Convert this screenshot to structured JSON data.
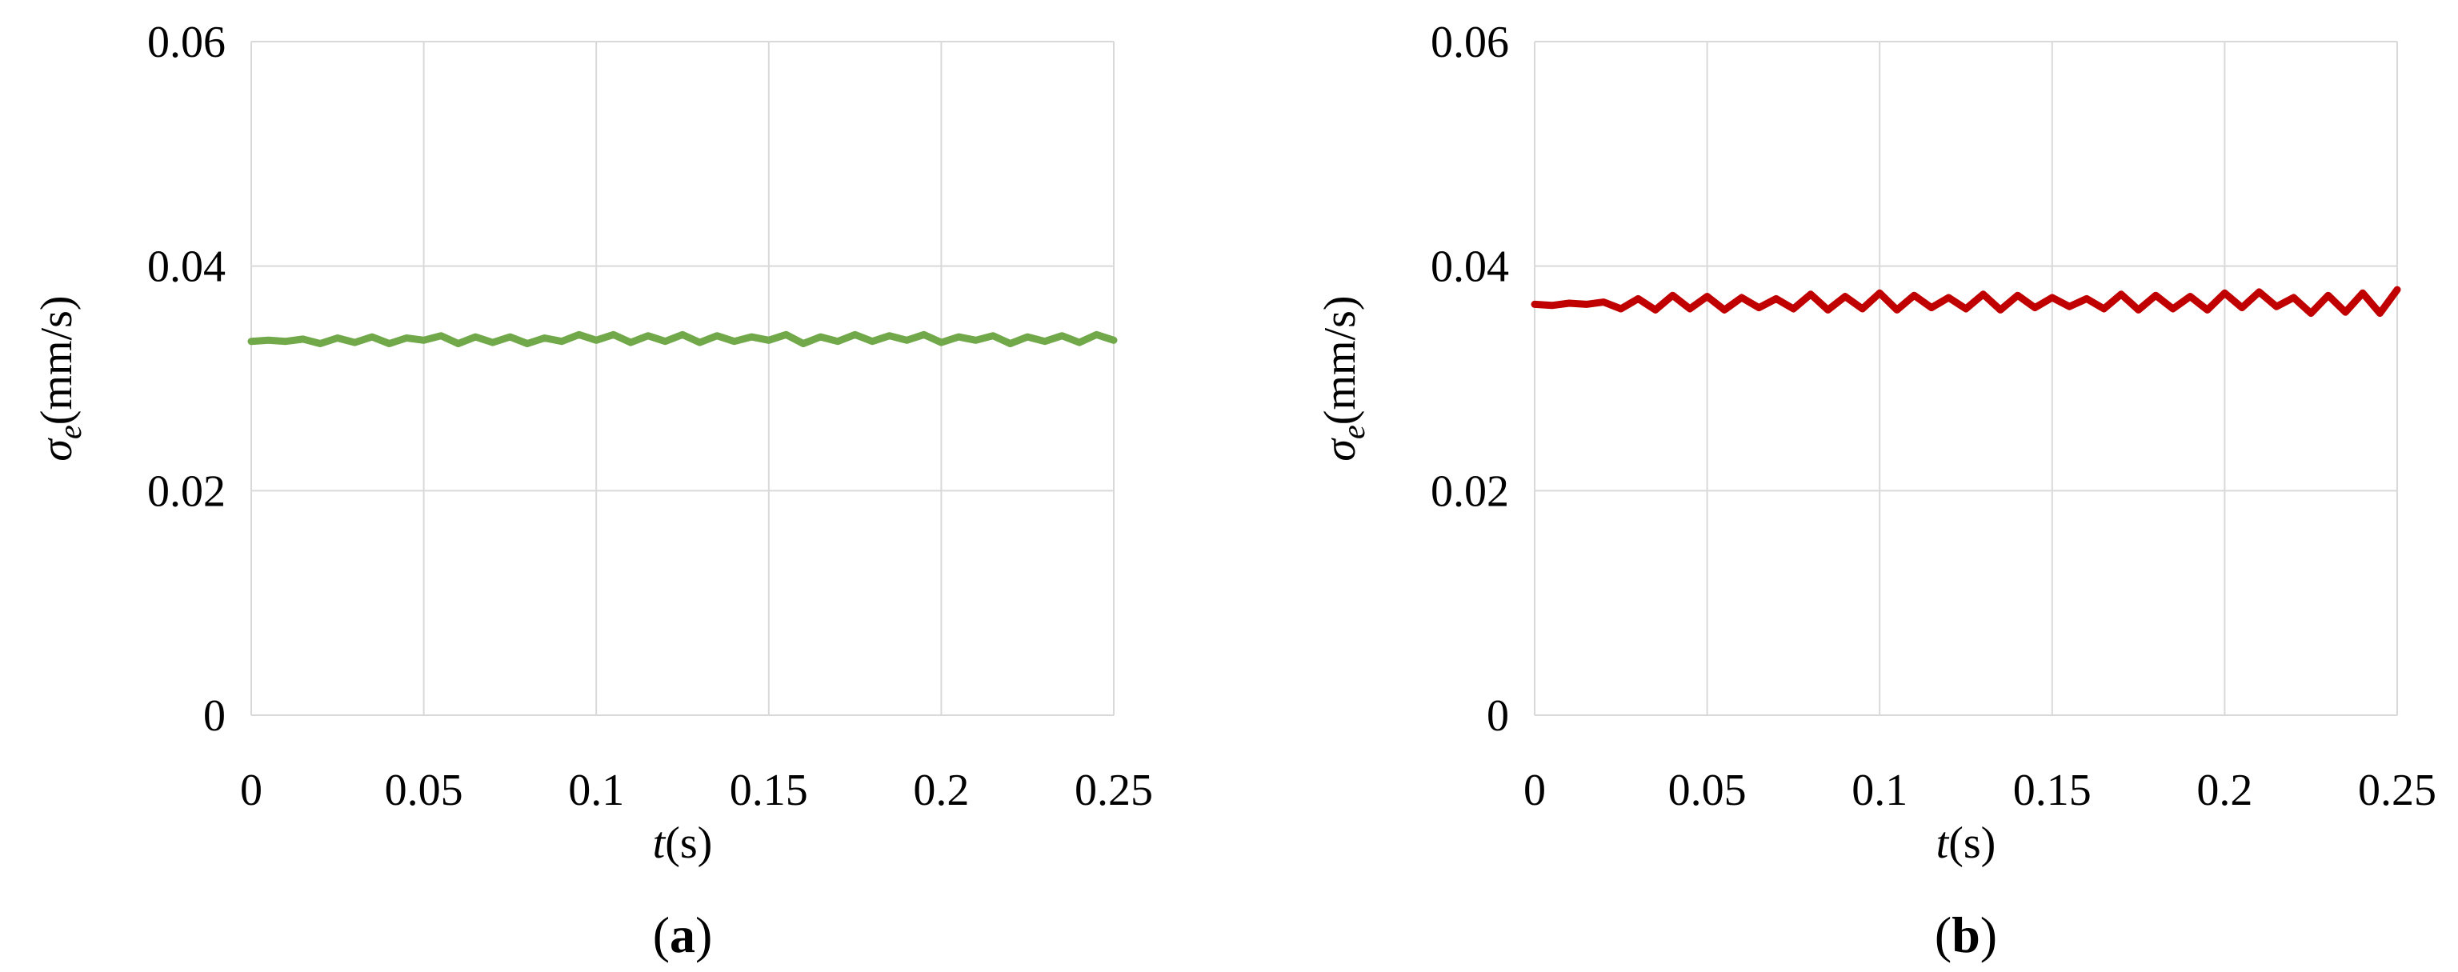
{
  "chart_data": [
    {
      "type": "line",
      "panel_label": {
        "open": "(",
        "letter": "a",
        "close": ")"
      },
      "xlabel": {
        "var": "t",
        "unit": "(s)"
      },
      "ylabel": {
        "symbol": "σ",
        "subscript": "e",
        "unit": "(mm/s)"
      },
      "xlim": [
        0,
        0.25
      ],
      "ylim": [
        0,
        0.06
      ],
      "xticks": [
        0,
        0.05,
        0.1,
        0.15,
        0.2,
        0.25
      ],
      "xtick_labels": [
        "0",
        "0.05",
        "0.1",
        "0.15",
        "0.2",
        "0.25"
      ],
      "yticks": [
        0,
        0.02,
        0.04,
        0.06
      ],
      "ytick_labels": [
        "0",
        "0.02",
        "0.04",
        "0.06"
      ],
      "grid": true,
      "series": [
        {
          "color": "#70a84a",
          "x": [
            0,
            0.005,
            0.01,
            0.015,
            0.02,
            0.025,
            0.03,
            0.035,
            0.04,
            0.045,
            0.05,
            0.055,
            0.06,
            0.065,
            0.07,
            0.075,
            0.08,
            0.085,
            0.09,
            0.095,
            0.1,
            0.105,
            0.11,
            0.115,
            0.12,
            0.125,
            0.13,
            0.135,
            0.14,
            0.145,
            0.15,
            0.155,
            0.16,
            0.165,
            0.17,
            0.175,
            0.18,
            0.185,
            0.19,
            0.195,
            0.2,
            0.205,
            0.21,
            0.215,
            0.22,
            0.225,
            0.23,
            0.235,
            0.24,
            0.245,
            0.25
          ],
          "y": [
            0.0333,
            0.0334,
            0.0333,
            0.0335,
            0.0331,
            0.0336,
            0.0332,
            0.0337,
            0.0331,
            0.0336,
            0.0334,
            0.0338,
            0.0331,
            0.0337,
            0.0332,
            0.0337,
            0.0331,
            0.0336,
            0.0333,
            0.0339,
            0.0334,
            0.0339,
            0.0332,
            0.0338,
            0.0333,
            0.0339,
            0.0332,
            0.0338,
            0.0333,
            0.0337,
            0.0334,
            0.0339,
            0.0331,
            0.0337,
            0.0333,
            0.0339,
            0.0333,
            0.0338,
            0.0334,
            0.0339,
            0.0332,
            0.0337,
            0.0334,
            0.0338,
            0.0331,
            0.0337,
            0.0333,
            0.0338,
            0.0332,
            0.0339,
            0.0334
          ]
        }
      ]
    },
    {
      "type": "line",
      "panel_label": {
        "open": "(",
        "letter": "b",
        "close": ")"
      },
      "xlabel": {
        "var": "t",
        "unit": "(s)"
      },
      "ylabel": {
        "symbol": "σ",
        "subscript": "e",
        "unit": "(mm/s)"
      },
      "xlim": [
        0,
        0.25
      ],
      "ylim": [
        0,
        0.06
      ],
      "xticks": [
        0,
        0.05,
        0.1,
        0.15,
        0.2,
        0.25
      ],
      "xtick_labels": [
        "0",
        "0.05",
        "0.1",
        "0.15",
        "0.2",
        "0.25"
      ],
      "yticks": [
        0,
        0.02,
        0.04,
        0.06
      ],
      "ytick_labels": [
        "0",
        "0.02",
        "0.04",
        "0.06"
      ],
      "grid": true,
      "series": [
        {
          "color": "#c00000",
          "x": [
            0,
            0.005,
            0.01,
            0.015,
            0.02,
            0.025,
            0.03,
            0.035,
            0.04,
            0.045,
            0.05,
            0.055,
            0.06,
            0.065,
            0.07,
            0.075,
            0.08,
            0.085,
            0.09,
            0.095,
            0.1,
            0.105,
            0.11,
            0.115,
            0.12,
            0.125,
            0.13,
            0.135,
            0.14,
            0.145,
            0.15,
            0.155,
            0.16,
            0.165,
            0.17,
            0.175,
            0.18,
            0.185,
            0.19,
            0.195,
            0.2,
            0.205,
            0.21,
            0.215,
            0.22,
            0.225,
            0.23,
            0.235,
            0.24,
            0.245,
            0.25
          ],
          "y": [
            0.0366,
            0.0365,
            0.0367,
            0.0366,
            0.0368,
            0.0362,
            0.0371,
            0.0361,
            0.0374,
            0.0362,
            0.0373,
            0.0361,
            0.0372,
            0.0363,
            0.0371,
            0.0362,
            0.0375,
            0.0361,
            0.0373,
            0.0362,
            0.0376,
            0.0361,
            0.0374,
            0.0363,
            0.0372,
            0.0362,
            0.0375,
            0.0361,
            0.0374,
            0.0363,
            0.0372,
            0.0364,
            0.0371,
            0.0362,
            0.0375,
            0.0361,
            0.0374,
            0.0362,
            0.0373,
            0.0361,
            0.0376,
            0.0363,
            0.0377,
            0.0364,
            0.0372,
            0.0358,
            0.0374,
            0.0359,
            0.0376,
            0.0358,
            0.0379
          ]
        }
      ]
    }
  ]
}
